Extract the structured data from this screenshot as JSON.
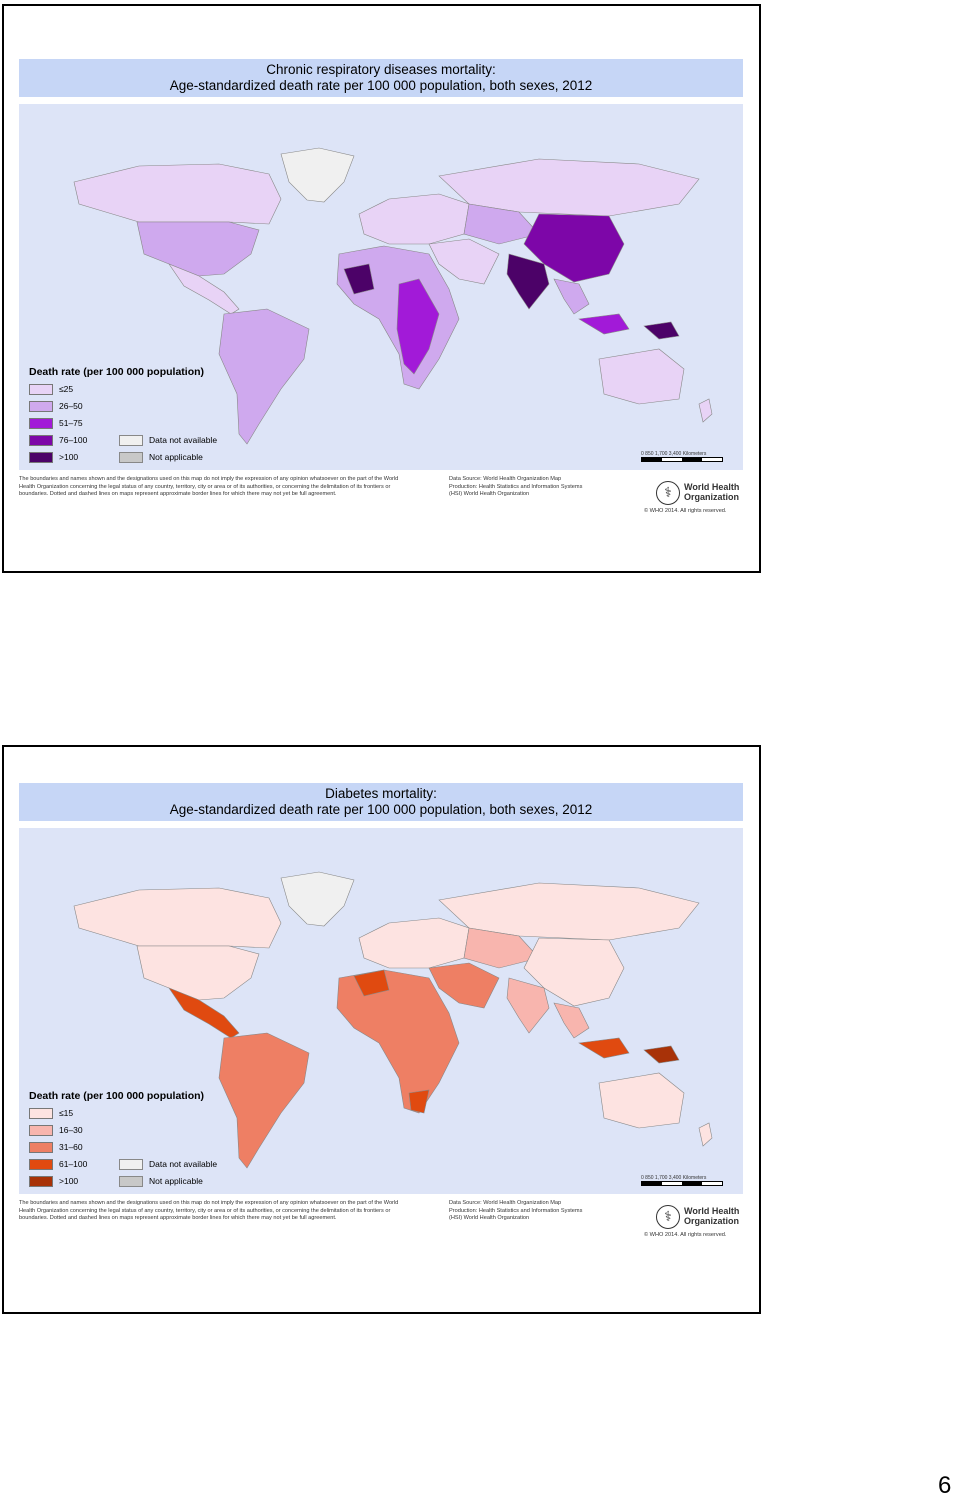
{
  "slides": [
    {
      "title_line1": "Chronic respiratory diseases mortality:",
      "title_line2": "Age-standardized death rate per 100 000 population, both sexes, 2012",
      "legend_title": "Death rate (per 100 000 population)",
      "legend_items": [
        {
          "label": "≤25",
          "color": "#e8d3f6"
        },
        {
          "label": "26–50",
          "color": "#cfa9ee"
        },
        {
          "label": "51–75",
          "color": "#a21ad8"
        },
        {
          "label": "76–100",
          "color": "#7d06a8"
        },
        {
          "label": ">100",
          "color": "#4c0268"
        }
      ],
      "na_items": [
        {
          "label": "Data not available",
          "color": "#f0f0f0"
        },
        {
          "label": "Not applicable",
          "color": "#c8c8c8"
        }
      ],
      "scale_label": "0   850   1,700        3,400 Kilometers"
    },
    {
      "title_line1": "Diabetes mortality:",
      "title_line2": "Age-standardized death rate per 100 000 population, both sexes, 2012",
      "legend_title": "Death rate (per 100 000 population)",
      "legend_items": [
        {
          "label": "≤15",
          "color": "#fde3e1"
        },
        {
          "label": "16–30",
          "color": "#f8b5ae"
        },
        {
          "label": "31–60",
          "color": "#ee7f64"
        },
        {
          "label": "61–100",
          "color": "#e04a10"
        },
        {
          "label": ">100",
          "color": "#a83208"
        }
      ],
      "na_items": [
        {
          "label": "Data not available",
          "color": "#f0f0f0"
        },
        {
          "label": "Not applicable",
          "color": "#c8c8c8"
        }
      ],
      "scale_label": "0   850   1,700        3,400 Kilometers"
    }
  ],
  "footer": {
    "disclaimer": "The boundaries and names shown and the designations used on this map do not imply the expression of any opinion whatsoever on the part of the World Health Organization concerning the legal status of any country, territory, city or area or of its authorities, or concerning the delimitation of its frontiers or boundaries. Dotted and dashed lines on maps represent approximate border lines for which there may not yet be full agreement.",
    "source": "Data Source: World Health Organization Map Production: Health Statistics and Information Systems (HSI) World Health Organization",
    "who_name_line1": "World Health",
    "who_name_line2": "Organization",
    "copyright": "© WHO 2014. All rights reserved."
  },
  "page_number": "6"
}
